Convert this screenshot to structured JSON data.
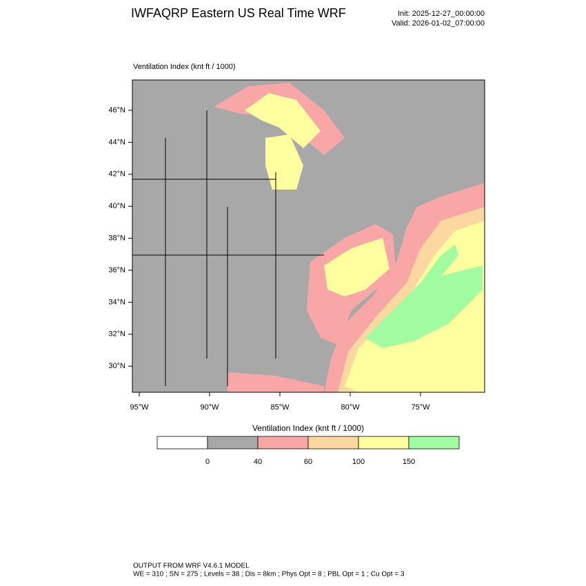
{
  "header": {
    "title": "IWFAQRP Eastern US Real Time WRF",
    "init": "Init: 2025-12-27_00:00:00",
    "valid": "Valid: 2026-01-02_07:00:00"
  },
  "map": {
    "label": "Ventilation Index   (knt ft / 1000)",
    "lat_ticks": [
      {
        "value": 46,
        "label": "46°N"
      },
      {
        "value": 44,
        "label": "44°N"
      },
      {
        "value": 42,
        "label": "42°N"
      },
      {
        "value": 40,
        "label": "40°N"
      },
      {
        "value": 38,
        "label": "38°N"
      },
      {
        "value": 36,
        "label": "36°N"
      },
      {
        "value": 34,
        "label": "34°N"
      },
      {
        "value": 32,
        "label": "32°N"
      },
      {
        "value": 30,
        "label": "30°N"
      }
    ],
    "lon_ticks": [
      {
        "value": 95,
        "label": "95°W"
      },
      {
        "value": 90,
        "label": "90°W"
      },
      {
        "value": 85,
        "label": "85°W"
      },
      {
        "value": 80,
        "label": "80°W"
      },
      {
        "value": 75,
        "label": "75°W"
      }
    ]
  },
  "colorbar": {
    "title": "Ventilation Index  (knt ft / 1000)",
    "levels": [
      0,
      40,
      60,
      100,
      150
    ],
    "colors": [
      "#ffffff",
      "#a8a8a8",
      "#f9a6a6",
      "#fcd8a0",
      "#ffff9f",
      "#a2fca2"
    ]
  },
  "footer": {
    "line1": "OUTPUT FROM WRF V4.6.1 MODEL",
    "line2": "WE = 310 ; SN = 275 ; Levels = 38 ; Dis = 8km ; Phys Opt = 8 ; PBL Opt = 1 ; Cu Opt = 3"
  }
}
